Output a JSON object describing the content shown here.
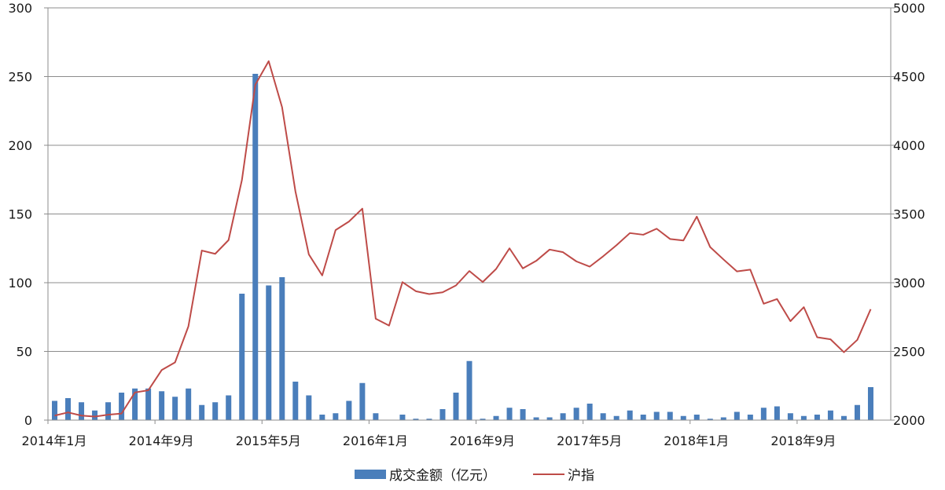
{
  "chart_data": {
    "type": "bar+line",
    "title": "",
    "categories": [
      "2014-01",
      "2014-02",
      "2014-03",
      "2014-04",
      "2014-05",
      "2014-06",
      "2014-07",
      "2014-08",
      "2014-09",
      "2014-10",
      "2014-11",
      "2014-12",
      "2015-01",
      "2015-02",
      "2015-03",
      "2015-04",
      "2015-05",
      "2015-06",
      "2015-07",
      "2015-08",
      "2015-09",
      "2015-10",
      "2015-11",
      "2015-12",
      "2016-01",
      "2016-02",
      "2016-03",
      "2016-04",
      "2016-05",
      "2016-06",
      "2016-07",
      "2016-08",
      "2016-09",
      "2016-10",
      "2016-11",
      "2016-12",
      "2017-01",
      "2017-02",
      "2017-03",
      "2017-04",
      "2017-05",
      "2017-06",
      "2017-07",
      "2017-08",
      "2017-09",
      "2017-10",
      "2017-11",
      "2017-12",
      "2018-01",
      "2018-02",
      "2018-03",
      "2018-04",
      "2018-05",
      "2018-06",
      "2018-07",
      "2018-08",
      "2018-09",
      "2018-10",
      "2018-11",
      "2018-12",
      "2019-01",
      "2019-02",
      "2019-03"
    ],
    "x_tick_labels": [
      {
        "index": 0,
        "label": "2014年1月"
      },
      {
        "index": 8,
        "label": "2014年9月"
      },
      {
        "index": 16,
        "label": "2015年5月"
      },
      {
        "index": 24,
        "label": "2016年1月"
      },
      {
        "index": 32,
        "label": "2016年9月"
      },
      {
        "index": 40,
        "label": "2017年5月"
      },
      {
        "index": 48,
        "label": "2018年1月"
      },
      {
        "index": 56,
        "label": "2018年9月"
      }
    ],
    "series": [
      {
        "name": "成交金额（亿元）",
        "kind": "bar",
        "axis": "left",
        "color": "#4a7ebb",
        "values": [
          14,
          16,
          13,
          7,
          13,
          20,
          23,
          23,
          21,
          17,
          23,
          11,
          13,
          18,
          92,
          252,
          98,
          104,
          28,
          18,
          4,
          5,
          14,
          27,
          5,
          0,
          4,
          1,
          1,
          8,
          20,
          43,
          1,
          3,
          9,
          8,
          2,
          2,
          5,
          9,
          12,
          5,
          3,
          7,
          4,
          6,
          6,
          3,
          4,
          1,
          2,
          6,
          4,
          9,
          10,
          5,
          3,
          4,
          7,
          3,
          11,
          24,
          0
        ]
      },
      {
        "name": "沪指",
        "kind": "line",
        "axis": "right",
        "color": "#be4b48",
        "values": [
          2033,
          2056,
          2033,
          2026,
          2039,
          2048,
          2201,
          2217,
          2364,
          2420,
          2683,
          3234,
          3210,
          3310,
          3748,
          4441,
          4612,
          4277,
          3664,
          3206,
          3053,
          3383,
          3445,
          3539,
          2738,
          2688,
          3004,
          2938,
          2917,
          2930,
          2980,
          3085,
          3005,
          3100,
          3250,
          3104,
          3159,
          3241,
          3222,
          3155,
          3117,
          3192,
          3273,
          3361,
          3349,
          3393,
          3318,
          3307,
          3481,
          3259,
          3169,
          3082,
          3095,
          2847,
          2881,
          2720,
          2822,
          2603,
          2588,
          2494,
          2584,
          2807,
          null
        ]
      }
    ],
    "y_left": {
      "min": 0,
      "max": 300,
      "ticks": [
        0,
        50,
        100,
        150,
        200,
        250,
        300
      ]
    },
    "y_right": {
      "min": 2000,
      "max": 5000,
      "ticks": [
        2000,
        2500,
        3000,
        3500,
        4000,
        4500,
        5000
      ]
    },
    "grid": true,
    "legend_position": "bottom"
  }
}
